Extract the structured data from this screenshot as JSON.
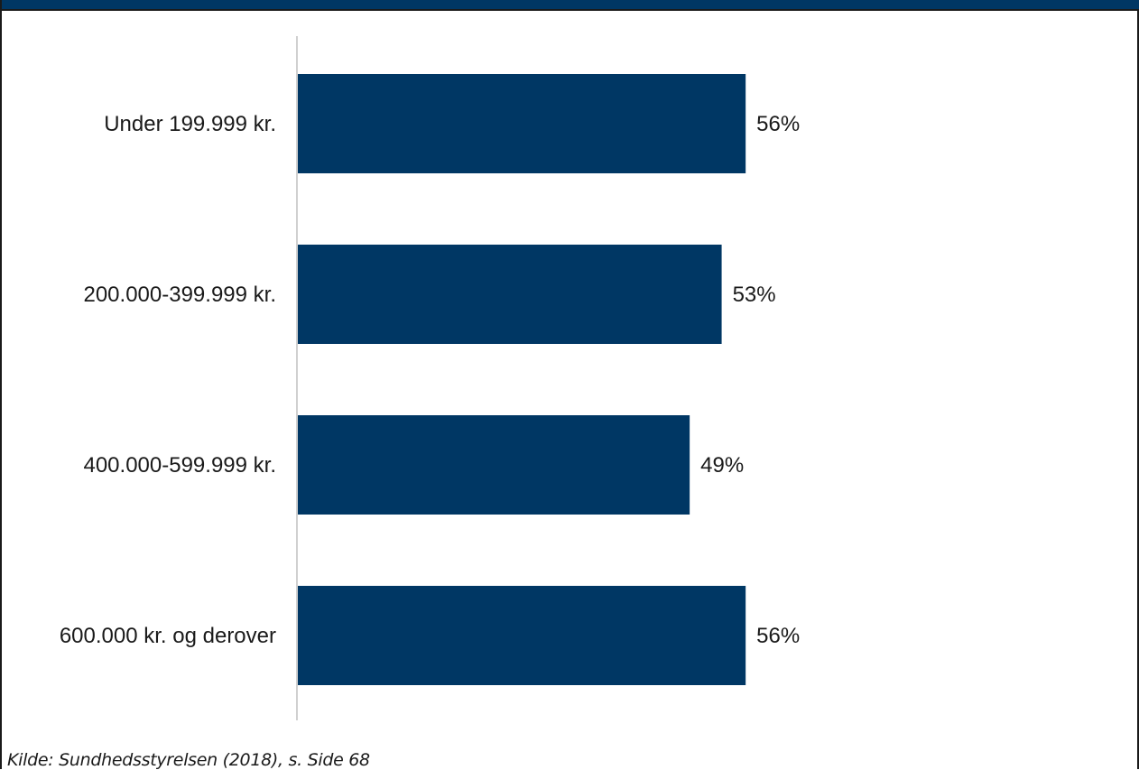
{
  "chart_data": {
    "type": "bar",
    "orientation": "horizontal",
    "categories": [
      "Under 199.999 kr.",
      "200.000-399.999 kr.",
      "400.000-599.999 kr.",
      "600.000 kr. og derover"
    ],
    "values": [
      56,
      53,
      49,
      56
    ],
    "value_labels": [
      "56%",
      "53%",
      "49%",
      "56%"
    ],
    "title": "",
    "xlabel": "",
    "ylabel": "",
    "xlim": [
      0,
      100
    ],
    "grid": false,
    "legend": "none",
    "bar_color": "#003764",
    "source": "Kilde: Sundhedsstyrelsen (2018), s. Side 68"
  }
}
